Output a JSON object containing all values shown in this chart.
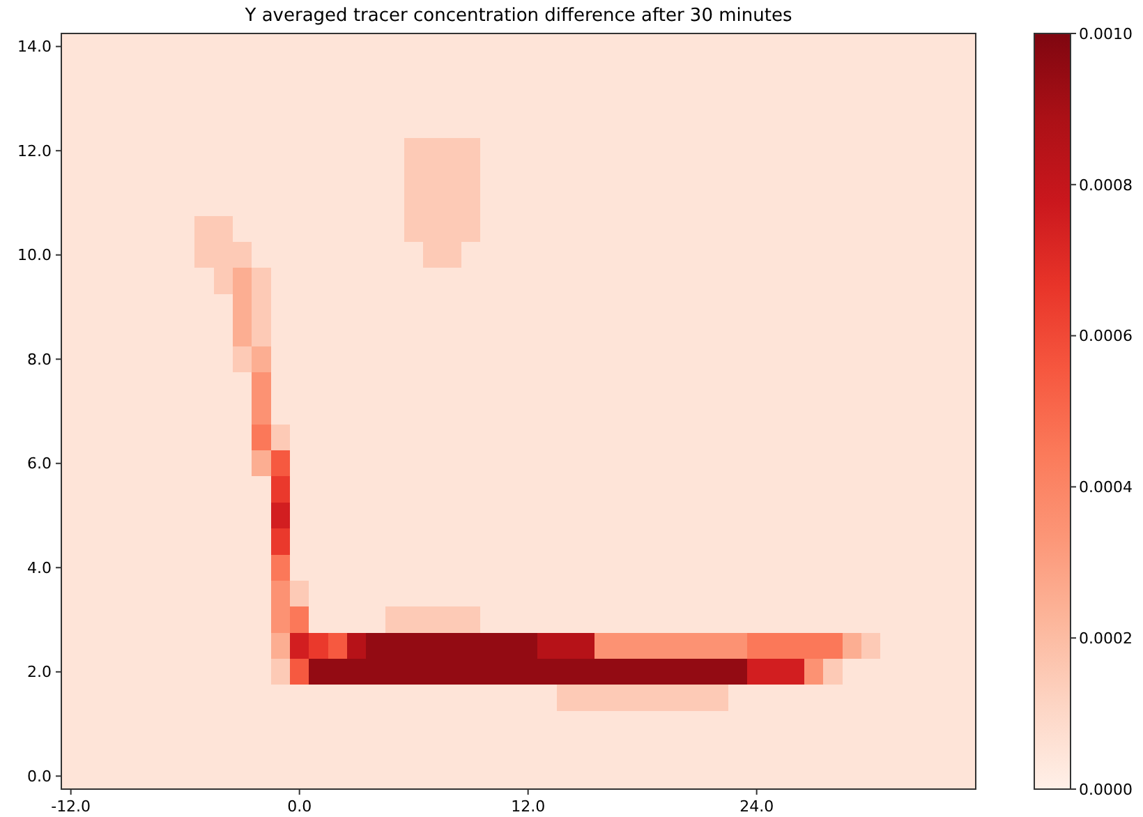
{
  "chart_data": {
    "type": "heatmap",
    "title": "Y averaged tracer concentration difference after 30 minutes",
    "categories": [
      "-12.0",
      null,
      null,
      null,
      null,
      null,
      null,
      null,
      null,
      null,
      null,
      null,
      "0.0",
      null,
      null,
      null,
      null,
      null,
      null,
      null,
      null,
      null,
      null,
      null,
      "12.0",
      null,
      null,
      null,
      null,
      null,
      null,
      null,
      null,
      null,
      null,
      null,
      "24.0",
      null,
      null,
      null,
      null,
      null,
      null,
      null,
      null,
      null,
      null,
      null
    ],
    "y_categories": [
      "14.0",
      null,
      null,
      null,
      "12.0",
      null,
      null,
      null,
      "10.0",
      null,
      null,
      null,
      "8.0",
      null,
      null,
      null,
      "6.0",
      null,
      null,
      null,
      "4.0",
      null,
      null,
      null,
      "2.0",
      null,
      null,
      null,
      "0.0"
    ],
    "clim": [
      0,
      0.001
    ],
    "cticks": [
      {
        "value": 0,
        "label": "0.0000"
      },
      {
        "value": 0.0002,
        "label": "0.0002"
      },
      {
        "value": 0.0004,
        "label": "0.0004"
      },
      {
        "value": 0.0006,
        "label": "0.0006"
      },
      {
        "value": 0.0008,
        "label": "0.0008"
      },
      {
        "value": 0.001,
        "label": "0.0010"
      }
    ],
    "colors": [
      "#fff0e8",
      "#fdd5c4",
      "#fcb69b",
      "#fc9677",
      "#fb7a5a",
      "#f6573f",
      "#e83429",
      "#ca171d",
      "#ab1016",
      "#7f0610"
    ],
    "cells": [
      [
        5e-05,
        5e-05,
        5e-05,
        5e-05,
        5e-05,
        5e-05,
        5e-05,
        5e-05,
        5e-05,
        5e-05,
        5e-05,
        5e-05,
        5e-05,
        5e-05,
        5e-05,
        5e-05,
        5e-05,
        5e-05,
        5e-05,
        5e-05,
        5e-05,
        5e-05,
        5e-05,
        5e-05,
        5e-05,
        5e-05,
        5e-05,
        5e-05,
        5e-05,
        5e-05,
        5e-05,
        5e-05,
        5e-05,
        5e-05,
        5e-05,
        5e-05,
        5e-05,
        5e-05,
        5e-05,
        5e-05,
        5e-05,
        5e-05,
        5e-05,
        5e-05,
        5e-05,
        5e-05,
        5e-05,
        5e-05
      ],
      [
        5e-05,
        5e-05,
        5e-05,
        5e-05,
        5e-05,
        5e-05,
        5e-05,
        5e-05,
        5e-05,
        5e-05,
        5e-05,
        5e-05,
        5e-05,
        5e-05,
        5e-05,
        5e-05,
        5e-05,
        5e-05,
        5e-05,
        5e-05,
        5e-05,
        5e-05,
        5e-05,
        5e-05,
        5e-05,
        5e-05,
        5e-05,
        5e-05,
        5e-05,
        5e-05,
        5e-05,
        5e-05,
        5e-05,
        5e-05,
        5e-05,
        5e-05,
        5e-05,
        5e-05,
        5e-05,
        5e-05,
        5e-05,
        5e-05,
        5e-05,
        5e-05,
        5e-05,
        5e-05,
        5e-05,
        5e-05
      ],
      [
        5e-05,
        5e-05,
        5e-05,
        5e-05,
        5e-05,
        5e-05,
        5e-05,
        5e-05,
        5e-05,
        5e-05,
        5e-05,
        5e-05,
        5e-05,
        5e-05,
        5e-05,
        5e-05,
        5e-05,
        5e-05,
        5e-05,
        5e-05,
        5e-05,
        5e-05,
        5e-05,
        5e-05,
        5e-05,
        5e-05,
        5e-05,
        5e-05,
        5e-05,
        5e-05,
        5e-05,
        5e-05,
        5e-05,
        5e-05,
        5e-05,
        5e-05,
        5e-05,
        5e-05,
        5e-05,
        5e-05,
        5e-05,
        5e-05,
        5e-05,
        5e-05,
        5e-05,
        5e-05,
        5e-05,
        5e-05
      ],
      [
        5e-05,
        5e-05,
        5e-05,
        5e-05,
        5e-05,
        5e-05,
        5e-05,
        5e-05,
        5e-05,
        5e-05,
        5e-05,
        5e-05,
        5e-05,
        5e-05,
        5e-05,
        5e-05,
        5e-05,
        5e-05,
        5e-05,
        5e-05,
        5e-05,
        5e-05,
        5e-05,
        5e-05,
        5e-05,
        5e-05,
        5e-05,
        5e-05,
        5e-05,
        5e-05,
        5e-05,
        5e-05,
        5e-05,
        5e-05,
        5e-05,
        5e-05,
        5e-05,
        5e-05,
        5e-05,
        5e-05,
        5e-05,
        5e-05,
        5e-05,
        5e-05,
        5e-05,
        5e-05,
        5e-05,
        5e-05
      ],
      [
        5e-05,
        5e-05,
        5e-05,
        5e-05,
        5e-05,
        5e-05,
        5e-05,
        5e-05,
        5e-05,
        5e-05,
        5e-05,
        5e-05,
        5e-05,
        5e-05,
        5e-05,
        5e-05,
        5e-05,
        5e-05,
        0.00015,
        0.00015,
        0.00015,
        0.00015,
        5e-05,
        5e-05,
        5e-05,
        5e-05,
        5e-05,
        5e-05,
        5e-05,
        5e-05,
        5e-05,
        5e-05,
        5e-05,
        5e-05,
        5e-05,
        5e-05,
        5e-05,
        5e-05,
        5e-05,
        5e-05,
        5e-05,
        5e-05,
        5e-05,
        5e-05,
        5e-05,
        5e-05,
        5e-05,
        5e-05
      ],
      [
        5e-05,
        5e-05,
        5e-05,
        5e-05,
        5e-05,
        5e-05,
        5e-05,
        5e-05,
        5e-05,
        5e-05,
        5e-05,
        5e-05,
        5e-05,
        5e-05,
        5e-05,
        5e-05,
        5e-05,
        5e-05,
        0.00015,
        0.00015,
        0.00015,
        0.00015,
        5e-05,
        5e-05,
        5e-05,
        5e-05,
        5e-05,
        5e-05,
        5e-05,
        5e-05,
        5e-05,
        5e-05,
        5e-05,
        5e-05,
        5e-05,
        5e-05,
        5e-05,
        5e-05,
        5e-05,
        5e-05,
        5e-05,
        5e-05,
        5e-05,
        5e-05,
        5e-05,
        5e-05,
        5e-05,
        5e-05
      ],
      [
        5e-05,
        5e-05,
        5e-05,
        5e-05,
        5e-05,
        5e-05,
        5e-05,
        5e-05,
        5e-05,
        5e-05,
        5e-05,
        5e-05,
        5e-05,
        5e-05,
        5e-05,
        5e-05,
        5e-05,
        5e-05,
        0.00015,
        0.00015,
        0.00015,
        0.00015,
        5e-05,
        5e-05,
        5e-05,
        5e-05,
        5e-05,
        5e-05,
        5e-05,
        5e-05,
        5e-05,
        5e-05,
        5e-05,
        5e-05,
        5e-05,
        5e-05,
        5e-05,
        5e-05,
        5e-05,
        5e-05,
        5e-05,
        5e-05,
        5e-05,
        5e-05,
        5e-05,
        5e-05,
        5e-05,
        5e-05
      ],
      [
        5e-05,
        5e-05,
        5e-05,
        5e-05,
        5e-05,
        5e-05,
        5e-05,
        0.00015,
        0.00015,
        5e-05,
        5e-05,
        5e-05,
        5e-05,
        5e-05,
        5e-05,
        5e-05,
        5e-05,
        5e-05,
        0.00015,
        0.00015,
        0.00015,
        0.00015,
        5e-05,
        5e-05,
        5e-05,
        5e-05,
        5e-05,
        5e-05,
        5e-05,
        5e-05,
        5e-05,
        5e-05,
        5e-05,
        5e-05,
        5e-05,
        5e-05,
        5e-05,
        5e-05,
        5e-05,
        5e-05,
        5e-05,
        5e-05,
        5e-05,
        5e-05,
        5e-05,
        5e-05,
        5e-05,
        5e-05
      ],
      [
        5e-05,
        5e-05,
        5e-05,
        5e-05,
        5e-05,
        5e-05,
        5e-05,
        0.00015,
        0.00015,
        0.00015,
        5e-05,
        5e-05,
        5e-05,
        5e-05,
        5e-05,
        5e-05,
        5e-05,
        5e-05,
        5e-05,
        0.00015,
        0.00015,
        5e-05,
        5e-05,
        5e-05,
        5e-05,
        5e-05,
        5e-05,
        5e-05,
        5e-05,
        5e-05,
        5e-05,
        5e-05,
        5e-05,
        5e-05,
        5e-05,
        5e-05,
        5e-05,
        5e-05,
        5e-05,
        5e-05,
        5e-05,
        5e-05,
        5e-05,
        5e-05,
        5e-05,
        5e-05,
        5e-05,
        5e-05
      ],
      [
        5e-05,
        5e-05,
        5e-05,
        5e-05,
        5e-05,
        5e-05,
        5e-05,
        5e-05,
        0.00015,
        0.00025,
        0.00015,
        5e-05,
        5e-05,
        5e-05,
        5e-05,
        5e-05,
        5e-05,
        5e-05,
        5e-05,
        5e-05,
        5e-05,
        5e-05,
        5e-05,
        5e-05,
        5e-05,
        5e-05,
        5e-05,
        5e-05,
        5e-05,
        5e-05,
        5e-05,
        5e-05,
        5e-05,
        5e-05,
        5e-05,
        5e-05,
        5e-05,
        5e-05,
        5e-05,
        5e-05,
        5e-05,
        5e-05,
        5e-05,
        5e-05,
        5e-05,
        5e-05,
        5e-05,
        5e-05
      ],
      [
        5e-05,
        5e-05,
        5e-05,
        5e-05,
        5e-05,
        5e-05,
        5e-05,
        5e-05,
        5e-05,
        0.00025,
        0.00015,
        5e-05,
        5e-05,
        5e-05,
        5e-05,
        5e-05,
        5e-05,
        5e-05,
        5e-05,
        5e-05,
        5e-05,
        5e-05,
        5e-05,
        5e-05,
        5e-05,
        5e-05,
        5e-05,
        5e-05,
        5e-05,
        5e-05,
        5e-05,
        5e-05,
        5e-05,
        5e-05,
        5e-05,
        5e-05,
        5e-05,
        5e-05,
        5e-05,
        5e-05,
        5e-05,
        5e-05,
        5e-05,
        5e-05,
        5e-05,
        5e-05,
        5e-05,
        5e-05
      ],
      [
        5e-05,
        5e-05,
        5e-05,
        5e-05,
        5e-05,
        5e-05,
        5e-05,
        5e-05,
        5e-05,
        0.00025,
        0.00015,
        5e-05,
        5e-05,
        5e-05,
        5e-05,
        5e-05,
        5e-05,
        5e-05,
        5e-05,
        5e-05,
        5e-05,
        5e-05,
        5e-05,
        5e-05,
        5e-05,
        5e-05,
        5e-05,
        5e-05,
        5e-05,
        5e-05,
        5e-05,
        5e-05,
        5e-05,
        5e-05,
        5e-05,
        5e-05,
        5e-05,
        5e-05,
        5e-05,
        5e-05,
        5e-05,
        5e-05,
        5e-05,
        5e-05,
        5e-05,
        5e-05,
        5e-05,
        5e-05
      ],
      [
        5e-05,
        5e-05,
        5e-05,
        5e-05,
        5e-05,
        5e-05,
        5e-05,
        5e-05,
        5e-05,
        0.00015,
        0.00025,
        5e-05,
        5e-05,
        5e-05,
        5e-05,
        5e-05,
        5e-05,
        5e-05,
        5e-05,
        5e-05,
        5e-05,
        5e-05,
        5e-05,
        5e-05,
        5e-05,
        5e-05,
        5e-05,
        5e-05,
        5e-05,
        5e-05,
        5e-05,
        5e-05,
        5e-05,
        5e-05,
        5e-05,
        5e-05,
        5e-05,
        5e-05,
        5e-05,
        5e-05,
        5e-05,
        5e-05,
        5e-05,
        5e-05,
        5e-05,
        5e-05,
        5e-05,
        5e-05
      ],
      [
        5e-05,
        5e-05,
        5e-05,
        5e-05,
        5e-05,
        5e-05,
        5e-05,
        5e-05,
        5e-05,
        5e-05,
        0.00035,
        5e-05,
        5e-05,
        5e-05,
        5e-05,
        5e-05,
        5e-05,
        5e-05,
        5e-05,
        5e-05,
        5e-05,
        5e-05,
        5e-05,
        5e-05,
        5e-05,
        5e-05,
        5e-05,
        5e-05,
        5e-05,
        5e-05,
        5e-05,
        5e-05,
        5e-05,
        5e-05,
        5e-05,
        5e-05,
        5e-05,
        5e-05,
        5e-05,
        5e-05,
        5e-05,
        5e-05,
        5e-05,
        5e-05,
        5e-05,
        5e-05,
        5e-05,
        5e-05
      ],
      [
        5e-05,
        5e-05,
        5e-05,
        5e-05,
        5e-05,
        5e-05,
        5e-05,
        5e-05,
        5e-05,
        5e-05,
        0.00035,
        5e-05,
        5e-05,
        5e-05,
        5e-05,
        5e-05,
        5e-05,
        5e-05,
        5e-05,
        5e-05,
        5e-05,
        5e-05,
        5e-05,
        5e-05,
        5e-05,
        5e-05,
        5e-05,
        5e-05,
        5e-05,
        5e-05,
        5e-05,
        5e-05,
        5e-05,
        5e-05,
        5e-05,
        5e-05,
        5e-05,
        5e-05,
        5e-05,
        5e-05,
        5e-05,
        5e-05,
        5e-05,
        5e-05,
        5e-05,
        5e-05,
        5e-05,
        5e-05
      ],
      [
        5e-05,
        5e-05,
        5e-05,
        5e-05,
        5e-05,
        5e-05,
        5e-05,
        5e-05,
        5e-05,
        5e-05,
        0.00045,
        0.00015,
        5e-05,
        5e-05,
        5e-05,
        5e-05,
        5e-05,
        5e-05,
        5e-05,
        5e-05,
        5e-05,
        5e-05,
        5e-05,
        5e-05,
        5e-05,
        5e-05,
        5e-05,
        5e-05,
        5e-05,
        5e-05,
        5e-05,
        5e-05,
        5e-05,
        5e-05,
        5e-05,
        5e-05,
        5e-05,
        5e-05,
        5e-05,
        5e-05,
        5e-05,
        5e-05,
        5e-05,
        5e-05,
        5e-05,
        5e-05,
        5e-05,
        5e-05
      ],
      [
        5e-05,
        5e-05,
        5e-05,
        5e-05,
        5e-05,
        5e-05,
        5e-05,
        5e-05,
        5e-05,
        5e-05,
        0.00025,
        0.00055,
        5e-05,
        5e-05,
        5e-05,
        5e-05,
        5e-05,
        5e-05,
        5e-05,
        5e-05,
        5e-05,
        5e-05,
        5e-05,
        5e-05,
        5e-05,
        5e-05,
        5e-05,
        5e-05,
        5e-05,
        5e-05,
        5e-05,
        5e-05,
        5e-05,
        5e-05,
        5e-05,
        5e-05,
        5e-05,
        5e-05,
        5e-05,
        5e-05,
        5e-05,
        5e-05,
        5e-05,
        5e-05,
        5e-05,
        5e-05,
        5e-05,
        5e-05
      ],
      [
        5e-05,
        5e-05,
        5e-05,
        5e-05,
        5e-05,
        5e-05,
        5e-05,
        5e-05,
        5e-05,
        5e-05,
        5e-05,
        0.00065,
        5e-05,
        5e-05,
        5e-05,
        5e-05,
        5e-05,
        5e-05,
        5e-05,
        5e-05,
        5e-05,
        5e-05,
        5e-05,
        5e-05,
        5e-05,
        5e-05,
        5e-05,
        5e-05,
        5e-05,
        5e-05,
        5e-05,
        5e-05,
        5e-05,
        5e-05,
        5e-05,
        5e-05,
        5e-05,
        5e-05,
        5e-05,
        5e-05,
        5e-05,
        5e-05,
        5e-05,
        5e-05,
        5e-05,
        5e-05,
        5e-05,
        5e-05
      ],
      [
        5e-05,
        5e-05,
        5e-05,
        5e-05,
        5e-05,
        5e-05,
        5e-05,
        5e-05,
        5e-05,
        5e-05,
        5e-05,
        0.00075,
        5e-05,
        5e-05,
        5e-05,
        5e-05,
        5e-05,
        5e-05,
        5e-05,
        5e-05,
        5e-05,
        5e-05,
        5e-05,
        5e-05,
        5e-05,
        5e-05,
        5e-05,
        5e-05,
        5e-05,
        5e-05,
        5e-05,
        5e-05,
        5e-05,
        5e-05,
        5e-05,
        5e-05,
        5e-05,
        5e-05,
        5e-05,
        5e-05,
        5e-05,
        5e-05,
        5e-05,
        5e-05,
        5e-05,
        5e-05,
        5e-05,
        5e-05
      ],
      [
        5e-05,
        5e-05,
        5e-05,
        5e-05,
        5e-05,
        5e-05,
        5e-05,
        5e-05,
        5e-05,
        5e-05,
        5e-05,
        0.00065,
        5e-05,
        5e-05,
        5e-05,
        5e-05,
        5e-05,
        5e-05,
        5e-05,
        5e-05,
        5e-05,
        5e-05,
        5e-05,
        5e-05,
        5e-05,
        5e-05,
        5e-05,
        5e-05,
        5e-05,
        5e-05,
        5e-05,
        5e-05,
        5e-05,
        5e-05,
        5e-05,
        5e-05,
        5e-05,
        5e-05,
        5e-05,
        5e-05,
        5e-05,
        5e-05,
        5e-05,
        5e-05,
        5e-05,
        5e-05,
        5e-05,
        5e-05
      ],
      [
        5e-05,
        5e-05,
        5e-05,
        5e-05,
        5e-05,
        5e-05,
        5e-05,
        5e-05,
        5e-05,
        5e-05,
        5e-05,
        0.00045,
        5e-05,
        5e-05,
        5e-05,
        5e-05,
        5e-05,
        5e-05,
        5e-05,
        5e-05,
        5e-05,
        5e-05,
        5e-05,
        5e-05,
        5e-05,
        5e-05,
        5e-05,
        5e-05,
        5e-05,
        5e-05,
        5e-05,
        5e-05,
        5e-05,
        5e-05,
        5e-05,
        5e-05,
        5e-05,
        5e-05,
        5e-05,
        5e-05,
        5e-05,
        5e-05,
        5e-05,
        5e-05,
        5e-05,
        5e-05,
        5e-05,
        5e-05
      ],
      [
        5e-05,
        5e-05,
        5e-05,
        5e-05,
        5e-05,
        5e-05,
        5e-05,
        5e-05,
        5e-05,
        5e-05,
        5e-05,
        0.00035,
        0.00015,
        5e-05,
        5e-05,
        5e-05,
        5e-05,
        5e-05,
        5e-05,
        5e-05,
        5e-05,
        5e-05,
        5e-05,
        5e-05,
        5e-05,
        5e-05,
        5e-05,
        5e-05,
        5e-05,
        5e-05,
        5e-05,
        5e-05,
        5e-05,
        5e-05,
        5e-05,
        5e-05,
        5e-05,
        5e-05,
        5e-05,
        5e-05,
        5e-05,
        5e-05,
        5e-05,
        5e-05,
        5e-05,
        5e-05,
        5e-05,
        5e-05
      ],
      [
        5e-05,
        5e-05,
        5e-05,
        5e-05,
        5e-05,
        5e-05,
        5e-05,
        5e-05,
        5e-05,
        5e-05,
        5e-05,
        0.00035,
        0.00045,
        5e-05,
        5e-05,
        5e-05,
        5e-05,
        0.00015,
        0.00015,
        0.00015,
        0.00015,
        0.00015,
        5e-05,
        5e-05,
        5e-05,
        5e-05,
        5e-05,
        5e-05,
        5e-05,
        5e-05,
        5e-05,
        5e-05,
        5e-05,
        5e-05,
        5e-05,
        5e-05,
        5e-05,
        5e-05,
        5e-05,
        5e-05,
        5e-05,
        5e-05,
        5e-05,
        5e-05,
        5e-05,
        5e-05,
        5e-05,
        5e-05
      ],
      [
        5e-05,
        5e-05,
        5e-05,
        5e-05,
        5e-05,
        5e-05,
        5e-05,
        5e-05,
        5e-05,
        5e-05,
        5e-05,
        0.00025,
        0.00075,
        0.00065,
        0.00055,
        0.00085,
        0.00095,
        0.00095,
        0.00095,
        0.00095,
        0.00095,
        0.00095,
        0.00095,
        0.00095,
        0.00095,
        0.00085,
        0.00085,
        0.00085,
        0.00035,
        0.00035,
        0.00035,
        0.00035,
        0.00035,
        0.00035,
        0.00035,
        0.00035,
        0.00045,
        0.00045,
        0.00045,
        0.00045,
        0.00045,
        0.00025,
        0.00015,
        5e-05,
        5e-05,
        5e-05,
        5e-05,
        5e-05
      ],
      [
        5e-05,
        5e-05,
        5e-05,
        5e-05,
        5e-05,
        5e-05,
        5e-05,
        5e-05,
        5e-05,
        5e-05,
        5e-05,
        0.00015,
        0.00055,
        0.00095,
        0.00095,
        0.00095,
        0.00095,
        0.00095,
        0.00095,
        0.00095,
        0.00095,
        0.00095,
        0.00095,
        0.00095,
        0.00095,
        0.00095,
        0.00095,
        0.00095,
        0.00095,
        0.00095,
        0.00095,
        0.00095,
        0.00095,
        0.00095,
        0.00095,
        0.00095,
        0.00075,
        0.00075,
        0.00075,
        0.00035,
        0.00015,
        5e-05,
        5e-05,
        5e-05,
        5e-05,
        5e-05,
        5e-05,
        5e-05
      ],
      [
        5e-05,
        5e-05,
        5e-05,
        5e-05,
        5e-05,
        5e-05,
        5e-05,
        5e-05,
        5e-05,
        5e-05,
        5e-05,
        5e-05,
        5e-05,
        5e-05,
        5e-05,
        5e-05,
        5e-05,
        5e-05,
        5e-05,
        5e-05,
        5e-05,
        5e-05,
        5e-05,
        5e-05,
        5e-05,
        5e-05,
        0.00015,
        0.00015,
        0.00015,
        0.00015,
        0.00015,
        0.00015,
        0.00015,
        0.00015,
        0.00015,
        5e-05,
        5e-05,
        5e-05,
        5e-05,
        5e-05,
        5e-05,
        5e-05,
        5e-05,
        5e-05,
        5e-05,
        5e-05,
        5e-05,
        5e-05
      ],
      [
        5e-05,
        5e-05,
        5e-05,
        5e-05,
        5e-05,
        5e-05,
        5e-05,
        5e-05,
        5e-05,
        5e-05,
        5e-05,
        5e-05,
        5e-05,
        5e-05,
        5e-05,
        5e-05,
        5e-05,
        5e-05,
        5e-05,
        5e-05,
        5e-05,
        5e-05,
        5e-05,
        5e-05,
        5e-05,
        5e-05,
        5e-05,
        5e-05,
        5e-05,
        5e-05,
        5e-05,
        5e-05,
        5e-05,
        5e-05,
        5e-05,
        5e-05,
        5e-05,
        5e-05,
        5e-05,
        5e-05,
        5e-05,
        5e-05,
        5e-05,
        5e-05,
        5e-05,
        5e-05,
        5e-05,
        5e-05
      ],
      [
        5e-05,
        5e-05,
        5e-05,
        5e-05,
        5e-05,
        5e-05,
        5e-05,
        5e-05,
        5e-05,
        5e-05,
        5e-05,
        5e-05,
        5e-05,
        5e-05,
        5e-05,
        5e-05,
        5e-05,
        5e-05,
        5e-05,
        5e-05,
        5e-05,
        5e-05,
        5e-05,
        5e-05,
        5e-05,
        5e-05,
        5e-05,
        5e-05,
        5e-05,
        5e-05,
        5e-05,
        5e-05,
        5e-05,
        5e-05,
        5e-05,
        5e-05,
        5e-05,
        5e-05,
        5e-05,
        5e-05,
        5e-05,
        5e-05,
        5e-05,
        5e-05,
        5e-05,
        5e-05,
        5e-05,
        5e-05
      ],
      [
        5e-05,
        5e-05,
        5e-05,
        5e-05,
        5e-05,
        5e-05,
        5e-05,
        5e-05,
        5e-05,
        5e-05,
        5e-05,
        5e-05,
        5e-05,
        5e-05,
        5e-05,
        5e-05,
        5e-05,
        5e-05,
        5e-05,
        5e-05,
        5e-05,
        5e-05,
        5e-05,
        5e-05,
        5e-05,
        5e-05,
        5e-05,
        5e-05,
        5e-05,
        5e-05,
        5e-05,
        5e-05,
        5e-05,
        5e-05,
        5e-05,
        5e-05,
        5e-05,
        5e-05,
        5e-05,
        5e-05,
        5e-05,
        5e-05,
        5e-05,
        5e-05,
        5e-05,
        5e-05,
        5e-05,
        5e-05
      ]
    ]
  }
}
